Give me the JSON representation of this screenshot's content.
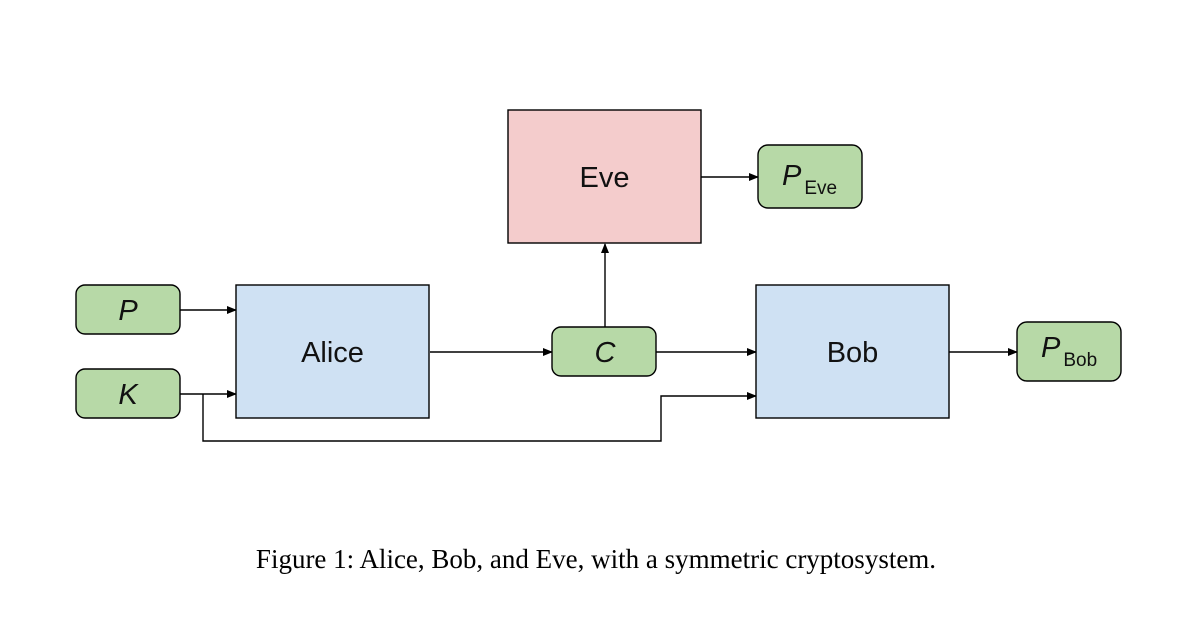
{
  "colors": {
    "party_fill": "#cfe1f3",
    "adversary_fill": "#f4cccc",
    "variable_fill": "#b7d9a7",
    "stroke": "#000000"
  },
  "nodes": {
    "alice": "Alice",
    "bob": "Bob",
    "eve": "Eve",
    "plaintext": "P",
    "key": "K",
    "ciphertext": "C",
    "p_eve_main": "P",
    "p_eve_sub": "Eve",
    "p_bob_main": "P",
    "p_bob_sub": "Bob"
  },
  "caption": {
    "number": "Figure 1:",
    "text": "Alice, Bob, and Eve, with a symmetric cryptosystem."
  }
}
